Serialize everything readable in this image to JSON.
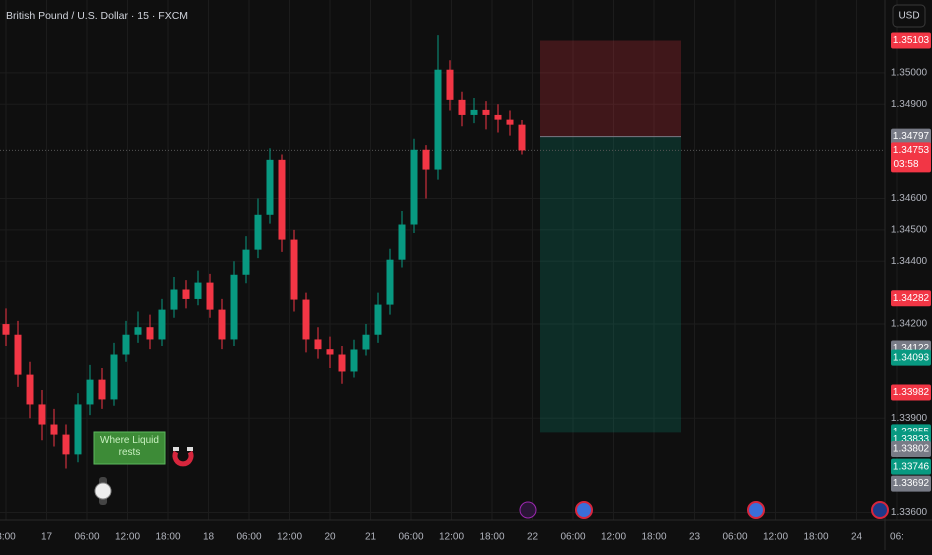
{
  "chart_data": {
    "type": "candlestick",
    "title": "British Pound / U.S. Dollar · 15 · FXCM",
    "currency": "USD",
    "up_color": "#089981",
    "down_color": "#f23645",
    "open": [
      1.342,
      1.34166,
      1.34039,
      1.33944,
      1.3388,
      1.33848,
      1.33785,
      1.33944,
      1.34023,
      1.3396,
      1.34103,
      1.34166,
      1.3419,
      1.34151,
      1.34246,
      1.3431,
      1.3428,
      1.34332,
      1.34246,
      1.34151,
      1.34357,
      1.34437,
      1.34548,
      1.34723,
      1.34469,
      1.34278,
      1.34151,
      1.3412,
      1.34103,
      1.34049,
      1.34119,
      1.34166,
      1.34262,
      1.34405,
      1.34517,
      1.34755,
      1.34692,
      1.3501,
      1.34914,
      1.34866,
      1.34882,
      1.34866,
      1.34851,
      1.34835
    ],
    "high": [
      1.3425,
      1.3421,
      1.3408,
      1.3399,
      1.3393,
      1.3388,
      1.3398,
      1.3407,
      1.3406,
      1.3414,
      1.3421,
      1.3424,
      1.3423,
      1.3428,
      1.3435,
      1.3434,
      1.3437,
      1.3436,
      1.3428,
      1.344,
      1.3448,
      1.346,
      1.3476,
      1.3474,
      1.345,
      1.343,
      1.3419,
      1.3416,
      1.3413,
      1.3415,
      1.342,
      1.343,
      1.3444,
      1.3456,
      1.3479,
      1.3477,
      1.3512,
      1.3504,
      1.3494,
      1.3492,
      1.3491,
      1.349,
      1.3488,
      1.3485
    ],
    "low": [
      1.3413,
      1.34,
      1.339,
      1.3383,
      1.3381,
      1.3374,
      1.3376,
      1.3391,
      1.3393,
      1.3394,
      1.3408,
      1.3414,
      1.3412,
      1.3413,
      1.3422,
      1.3425,
      1.3426,
      1.3422,
      1.3412,
      1.3413,
      1.3433,
      1.3441,
      1.3452,
      1.3443,
      1.3424,
      1.3411,
      1.3409,
      1.3406,
      1.3401,
      1.3403,
      1.341,
      1.3414,
      1.3423,
      1.3438,
      1.3449,
      1.346,
      1.3466,
      1.3488,
      1.3483,
      1.3484,
      1.3482,
      1.3481,
      1.348,
      1.3474
    ],
    "close": [
      1.34166,
      1.34039,
      1.33944,
      1.3388,
      1.33848,
      1.33785,
      1.33944,
      1.34023,
      1.3396,
      1.34103,
      1.34166,
      1.3419,
      1.34151,
      1.34246,
      1.3431,
      1.3428,
      1.34332,
      1.34246,
      1.34151,
      1.34357,
      1.34437,
      1.34548,
      1.34723,
      1.34469,
      1.34278,
      1.34151,
      1.3412,
      1.34103,
      1.34049,
      1.34119,
      1.34166,
      1.34262,
      1.34405,
      1.34517,
      1.34755,
      1.34692,
      1.3501,
      1.34914,
      1.34866,
      1.34882,
      1.34866,
      1.34851,
      1.34835,
      1.34753
    ],
    "x_labels": [
      "8:00",
      "17",
      "06:00",
      "12:00",
      "18:00",
      "18",
      "06:00",
      "12:00",
      "20",
      "21",
      "06:00",
      "12:00",
      "18:00",
      "22",
      "06:00",
      "12:00",
      "18:00",
      "23",
      "06:00",
      "12:00",
      "18:00",
      "24",
      "06:"
    ],
    "ylim": [
      1.33576,
      1.35232
    ],
    "yticks": [
      {
        "value": 1.35,
        "label": "1.35000"
      },
      {
        "value": 1.349,
        "label": "1.34900"
      },
      {
        "value": 1.346,
        "label": "1.34600"
      },
      {
        "value": 1.345,
        "label": "1.34500"
      },
      {
        "value": 1.344,
        "label": "1.34400"
      },
      {
        "value": 1.342,
        "label": "1.34200"
      },
      {
        "value": 1.339,
        "label": "1.33900"
      },
      {
        "value": 1.336,
        "label": "1.33600"
      }
    ],
    "grid": true,
    "position": {
      "stop": 1.35103,
      "entry": 1.34797,
      "target": 1.33855
    },
    "current_price": {
      "value": 1.34753,
      "label": "1.34753",
      "countdown": "03:58"
    },
    "price_labels": [
      {
        "value": 1.35103,
        "label": "1.35103",
        "color": "#f23645"
      },
      {
        "value": 1.34797,
        "label": "1.34797",
        "color": "#787b86"
      },
      {
        "value": 1.34282,
        "label": "1.34282",
        "color": "#f23645"
      },
      {
        "value": 1.34122,
        "label": "1.34122",
        "color": "#787b86"
      },
      {
        "value": 1.34093,
        "label": "1.34093",
        "color": "#089981"
      },
      {
        "value": 1.33982,
        "label": "1.33982",
        "color": "#f23645"
      },
      {
        "value": 1.33855,
        "label": "1.33855",
        "color": "#089981"
      },
      {
        "value": 1.33833,
        "label": "1.33833",
        "color": "#089981"
      },
      {
        "value": 1.33802,
        "label": "1.33802",
        "color": "#787b86"
      },
      {
        "value": 1.33746,
        "label": "1.33746",
        "color": "#089981"
      },
      {
        "value": 1.33692,
        "label": "1.33692",
        "color": "#787b86"
      }
    ],
    "annotation": "Where Liquid rests"
  }
}
